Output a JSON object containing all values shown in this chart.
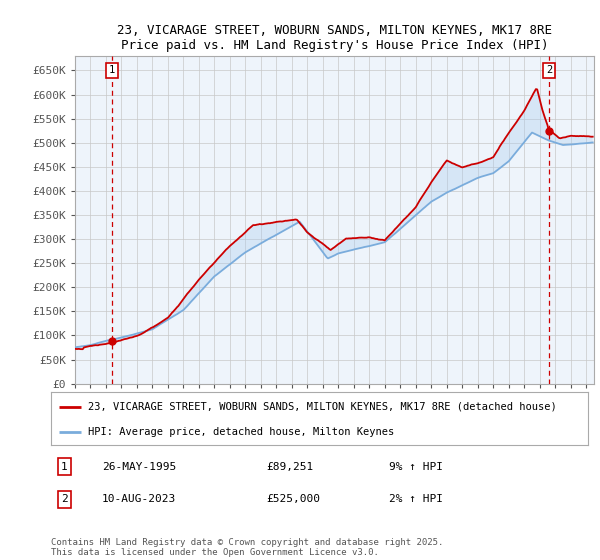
{
  "title1": "23, VICARAGE STREET, WOBURN SANDS, MILTON KEYNES, MK17 8RE",
  "title2": "Price paid vs. HM Land Registry's House Price Index (HPI)",
  "ylim": [
    0,
    680000
  ],
  "yticks": [
    0,
    50000,
    100000,
    150000,
    200000,
    250000,
    300000,
    350000,
    400000,
    450000,
    500000,
    550000,
    600000,
    650000
  ],
  "ytick_labels": [
    "£0",
    "£50K",
    "£100K",
    "£150K",
    "£200K",
    "£250K",
    "£300K",
    "£350K",
    "£400K",
    "£450K",
    "£500K",
    "£550K",
    "£600K",
    "£650K"
  ],
  "xlim_start": 1993.0,
  "xlim_end": 2026.5,
  "point1_x": 1995.39,
  "point1_y": 89251,
  "point2_x": 2023.61,
  "point2_y": 525000,
  "legend_line1": "23, VICARAGE STREET, WOBURN SANDS, MILTON KEYNES, MK17 8RE (detached house)",
  "legend_line2": "HPI: Average price, detached house, Milton Keynes",
  "annotation1_label": "1",
  "annotation1_date": "26-MAY-1995",
  "annotation1_price": "£89,251",
  "annotation1_hpi": "9% ↑ HPI",
  "annotation2_label": "2",
  "annotation2_date": "10-AUG-2023",
  "annotation2_price": "£525,000",
  "annotation2_hpi": "2% ↑ HPI",
  "footer": "Contains HM Land Registry data © Crown copyright and database right 2025.\nThis data is licensed under the Open Government Licence v3.0.",
  "price_color": "#cc0000",
  "hpi_color": "#7aacdc",
  "hpi_fill_color": "#aaccee",
  "bg_color": "#ffffff",
  "grid_color": "#c8c8c8",
  "chart_bg": "#eef4fb"
}
